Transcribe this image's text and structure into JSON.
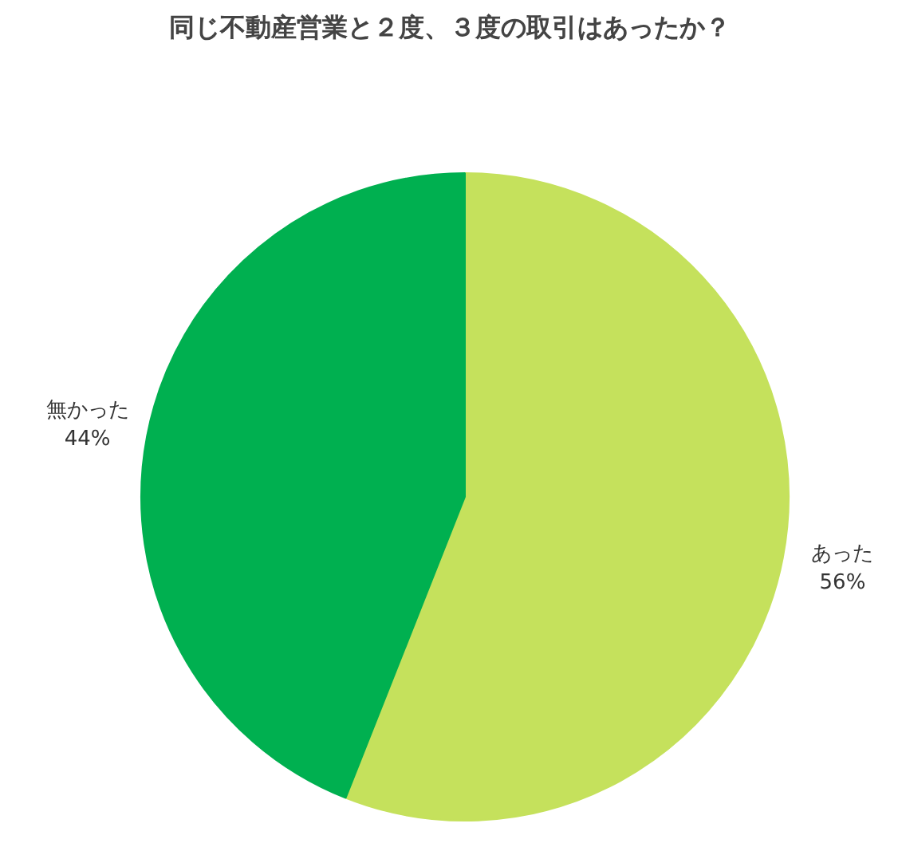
{
  "chart_data": {
    "type": "pie",
    "title": "同じ不動産営業と２度、３度の取引はあったか？",
    "categories": [
      "あった",
      "無かった"
    ],
    "values": [
      56,
      44
    ],
    "value_labels": [
      "56%",
      "44%"
    ],
    "colors": [
      "#c5e15c",
      "#00b050"
    ]
  }
}
